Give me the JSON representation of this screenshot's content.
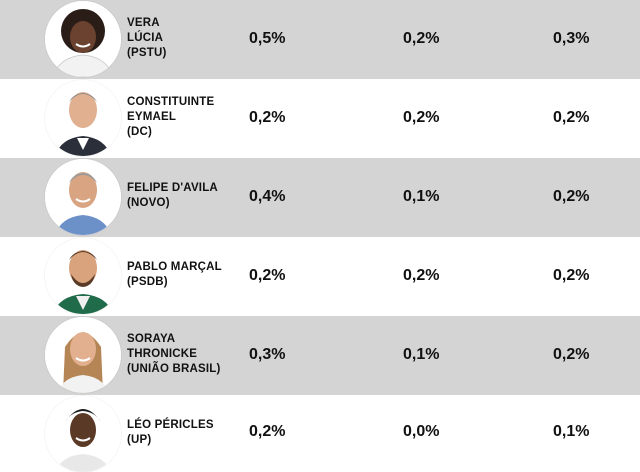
{
  "rows": [
    {
      "name": "VERA\nLÚCIA\n(PSTU)",
      "values": [
        "0,5%",
        "0,2%",
        "0,3%"
      ],
      "photo": "candidate-photo-vera-lucia"
    },
    {
      "name": "CONSTITUINTE\nEYMAEL\n(DC)",
      "values": [
        "0,2%",
        "0,2%",
        "0,2%"
      ],
      "photo": "candidate-photo-constituinte-eymael"
    },
    {
      "name": "FELIPE D'AVILA\n(NOVO)",
      "values": [
        "0,4%",
        "0,1%",
        "0,2%"
      ],
      "photo": "candidate-photo-felipe-davila"
    },
    {
      "name": "PABLO MARÇAL\n(PSDB)",
      "values": [
        "0,2%",
        "0,2%",
        "0,2%"
      ],
      "photo": "candidate-photo-pablo-marcal"
    },
    {
      "name": "SORAYA\nTHRONICKE\n(UNIÃO BRASIL)",
      "values": [
        "0,3%",
        "0,1%",
        "0,2%"
      ],
      "photo": "candidate-photo-soraya-thronicke"
    },
    {
      "name": "LÉO PÉRICLES\n(UP)",
      "values": [
        "0,2%",
        "0,0%",
        "0,1%"
      ],
      "photo": "candidate-photo-leo-pericles"
    }
  ],
  "colors": {
    "shaded_row": "#d4d4d4",
    "plain_row": "#ffffff",
    "text": "#111111"
  }
}
